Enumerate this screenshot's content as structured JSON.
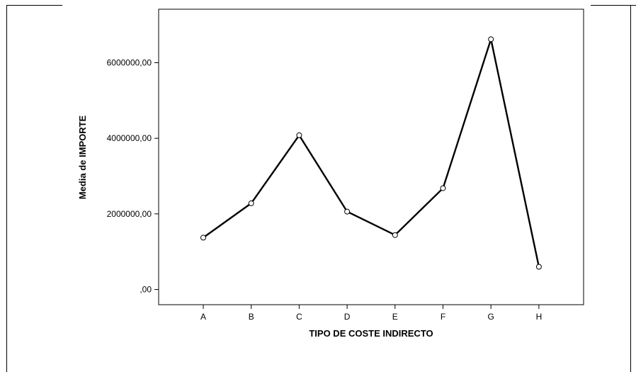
{
  "chart_data": {
    "type": "line",
    "title": "",
    "xlabel": "TIPO DE COSTE INDIRECTO",
    "ylabel": "Media de IMPORTE",
    "categories": [
      "A",
      "B",
      "C",
      "D",
      "E",
      "F",
      "G",
      "H"
    ],
    "values": [
      1370000,
      2280000,
      4080000,
      2060000,
      1440000,
      2680000,
      6620000,
      600000
    ],
    "yticks": [
      0,
      2000000,
      4000000,
      6000000
    ],
    "ytick_labels": [
      ",00",
      "2000000,00",
      "4000000,00",
      "6000000,00"
    ],
    "ylim": [
      -400000,
      7400000
    ],
    "grid": false,
    "legend": "none",
    "line_color": "#000000"
  }
}
